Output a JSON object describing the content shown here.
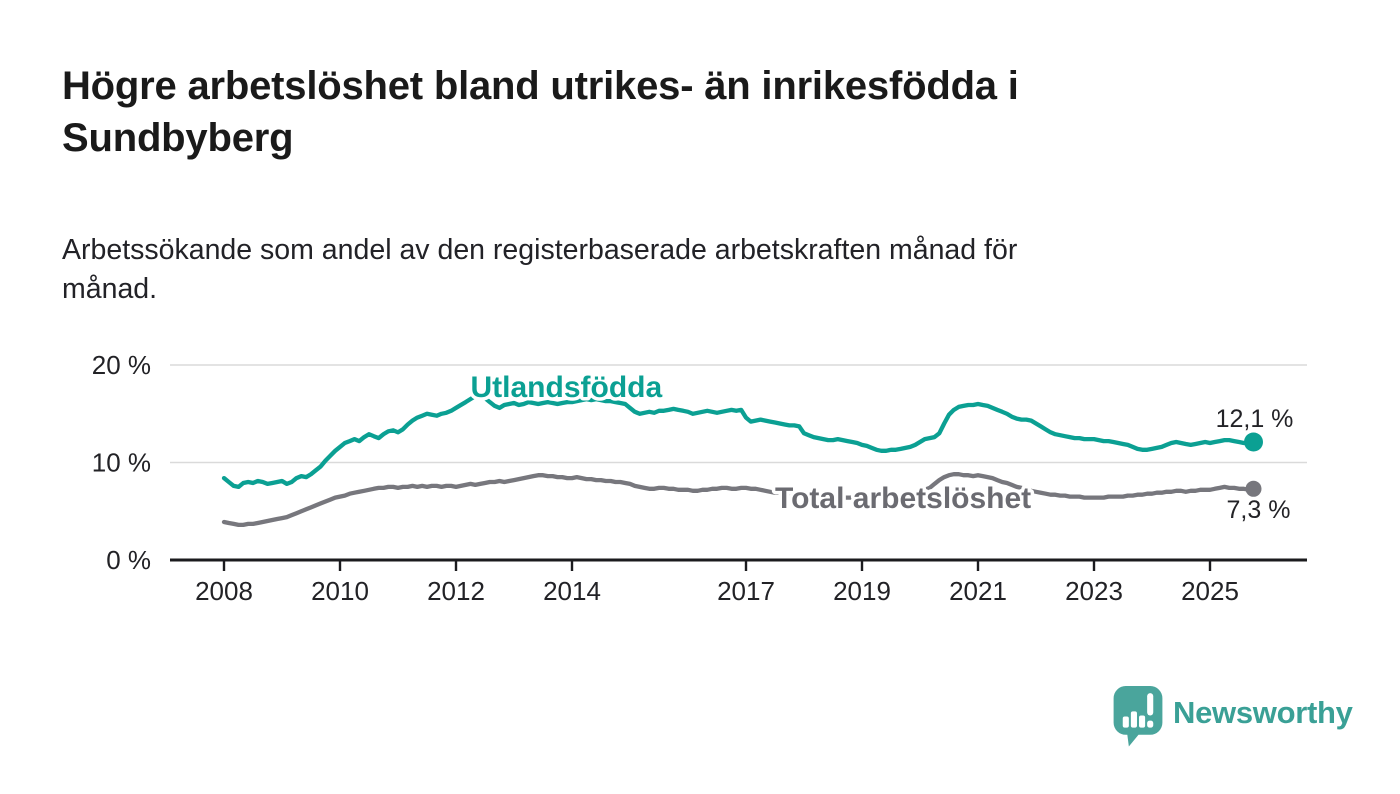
{
  "header": {
    "title_lines": [
      "Högre arbetslöshet bland utrikes- än inrikesfödda i",
      "Sundbyberg"
    ],
    "subtitle_lines": [
      "Arbetssökande som andel av den registerbaserade arbetskraften månad för",
      "månad."
    ]
  },
  "colors": {
    "accent_teal": "#0ba093",
    "series_gray": "#77777d",
    "grid": "#dadada",
    "axis": "#1b1b1e",
    "text_dark": "#1a1a1a",
    "logo_teal": "#4aa59c"
  },
  "chart_data": {
    "type": "line",
    "title": "Högre arbetslöshet bland utrikes- än inrikesfödda i Sundbyberg",
    "subtitle": "Arbetssökande som andel av den registerbaserade arbetskraften månad för månad.",
    "x_unit": "monthly",
    "x_start_year": 2008,
    "x_start_month": 1,
    "x_end_year": 2025,
    "x_end_month": 10,
    "x_ticks": [
      2008,
      2010,
      2012,
      2014,
      2017,
      2019,
      2021,
      2023,
      2025
    ],
    "y_ticks": [
      {
        "value": 0,
        "label": "0 %"
      },
      {
        "value": 10,
        "label": "10 %"
      },
      {
        "value": 20,
        "label": "20 %"
      }
    ],
    "ylim": [
      0,
      21.5
    ],
    "grid": "horizontal",
    "legend_position": "inline-labels",
    "series": [
      {
        "name": "Utlandsfödda",
        "color": "#0ba093",
        "label_color": "#0ba093",
        "end_label": "12,1 %",
        "end_value": 12.1,
        "dot_radius": 9.5,
        "label_anchor": {
          "year": 2012.25,
          "pct": 16.7
        },
        "end_label_offset": {
          "dx": 1,
          "dy": -15
        },
        "values": [
          8.4,
          8.0,
          7.6,
          7.5,
          7.9,
          8.0,
          7.9,
          8.1,
          8.0,
          7.8,
          7.9,
          8.0,
          8.1,
          7.8,
          8.0,
          8.4,
          8.6,
          8.5,
          8.8,
          9.2,
          9.6,
          10.2,
          10.7,
          11.2,
          11.6,
          12.0,
          12.2,
          12.4,
          12.2,
          12.6,
          12.9,
          12.7,
          12.5,
          12.9,
          13.2,
          13.3,
          13.1,
          13.4,
          13.9,
          14.3,
          14.6,
          14.8,
          15.0,
          14.9,
          14.8,
          15.0,
          15.1,
          15.3,
          15.6,
          15.9,
          16.2,
          16.5,
          16.8,
          16.8,
          16.6,
          16.2,
          15.8,
          15.6,
          15.9,
          16.0,
          16.1,
          15.9,
          16.0,
          16.2,
          16.1,
          16.0,
          16.1,
          16.2,
          16.1,
          16.0,
          16.1,
          16.2,
          16.2,
          16.3,
          16.4,
          16.5,
          16.4,
          16.5,
          16.4,
          16.3,
          16.3,
          16.2,
          16.1,
          16.0,
          15.6,
          15.2,
          15.0,
          15.1,
          15.2,
          15.1,
          15.3,
          15.3,
          15.4,
          15.5,
          15.4,
          15.3,
          15.2,
          15.0,
          15.1,
          15.2,
          15.3,
          15.2,
          15.1,
          15.2,
          15.3,
          15.4,
          15.3,
          15.4,
          14.6,
          14.2,
          14.3,
          14.4,
          14.3,
          14.2,
          14.1,
          14.0,
          13.9,
          13.8,
          13.8,
          13.7,
          13.0,
          12.8,
          12.6,
          12.5,
          12.4,
          12.3,
          12.3,
          12.4,
          12.3,
          12.2,
          12.1,
          12.0,
          11.8,
          11.7,
          11.5,
          11.3,
          11.2,
          11.2,
          11.3,
          11.3,
          11.4,
          11.5,
          11.6,
          11.8,
          12.1,
          12.4,
          12.5,
          12.6,
          13.0,
          14.0,
          14.9,
          15.4,
          15.7,
          15.8,
          15.9,
          15.9,
          16.0,
          15.9,
          15.8,
          15.6,
          15.4,
          15.2,
          15.0,
          14.7,
          14.5,
          14.4,
          14.4,
          14.3,
          14.0,
          13.7,
          13.4,
          13.1,
          12.9,
          12.8,
          12.7,
          12.6,
          12.5,
          12.5,
          12.4,
          12.4,
          12.4,
          12.3,
          12.2,
          12.2,
          12.1,
          12.0,
          11.9,
          11.8,
          11.6,
          11.4,
          11.3,
          11.3,
          11.4,
          11.5,
          11.6,
          11.8,
          12.0,
          12.1,
          12.0,
          11.9,
          11.8,
          11.9,
          12.0,
          12.1,
          12.0,
          12.1,
          12.2,
          12.3,
          12.3,
          12.2,
          12.1,
          12.0,
          12.0,
          12.1
        ]
      },
      {
        "name": "Total arbetslöshet",
        "color": "#77777d",
        "label_color": "#6b6b71",
        "end_label": "7,3 %",
        "end_value": 7.3,
        "dot_radius": 8,
        "label_anchor": {
          "year": 2017.5,
          "pct": 5.33
        },
        "end_label_offset": {
          "dx": 5,
          "dy": 29
        },
        "values": [
          3.9,
          3.8,
          3.7,
          3.6,
          3.6,
          3.7,
          3.7,
          3.8,
          3.9,
          4.0,
          4.1,
          4.2,
          4.3,
          4.4,
          4.6,
          4.8,
          5.0,
          5.2,
          5.4,
          5.6,
          5.8,
          6.0,
          6.2,
          6.4,
          6.5,
          6.6,
          6.8,
          6.9,
          7.0,
          7.1,
          7.2,
          7.3,
          7.4,
          7.4,
          7.5,
          7.5,
          7.4,
          7.5,
          7.5,
          7.6,
          7.5,
          7.6,
          7.5,
          7.6,
          7.6,
          7.5,
          7.6,
          7.6,
          7.5,
          7.6,
          7.7,
          7.8,
          7.7,
          7.8,
          7.9,
          8.0,
          8.0,
          8.1,
          8.0,
          8.1,
          8.2,
          8.3,
          8.4,
          8.5,
          8.6,
          8.7,
          8.7,
          8.6,
          8.6,
          8.5,
          8.5,
          8.4,
          8.4,
          8.5,
          8.4,
          8.3,
          8.3,
          8.2,
          8.2,
          8.1,
          8.1,
          8.0,
          8.0,
          7.9,
          7.8,
          7.6,
          7.5,
          7.4,
          7.3,
          7.3,
          7.4,
          7.4,
          7.3,
          7.3,
          7.2,
          7.2,
          7.2,
          7.1,
          7.1,
          7.2,
          7.2,
          7.3,
          7.3,
          7.4,
          7.4,
          7.3,
          7.3,
          7.4,
          7.4,
          7.3,
          7.3,
          7.2,
          7.1,
          7.0,
          6.9,
          6.9,
          6.8,
          6.7,
          6.7,
          6.6,
          6.6,
          6.5,
          6.5,
          6.4,
          6.4,
          6.3,
          6.3,
          6.4,
          6.4,
          6.4,
          6.4,
          6.5,
          6.5,
          6.4,
          6.4,
          6.5,
          6.5,
          6.6,
          6.6,
          6.7,
          6.7,
          6.8,
          6.8,
          6.9,
          7.0,
          7.2,
          7.4,
          7.8,
          8.2,
          8.5,
          8.7,
          8.8,
          8.8,
          8.7,
          8.7,
          8.6,
          8.7,
          8.6,
          8.5,
          8.4,
          8.2,
          8.0,
          7.9,
          7.7,
          7.5,
          7.4,
          7.2,
          7.1,
          7.0,
          6.9,
          6.8,
          6.7,
          6.7,
          6.6,
          6.6,
          6.5,
          6.5,
          6.5,
          6.4,
          6.4,
          6.4,
          6.4,
          6.4,
          6.5,
          6.5,
          6.5,
          6.5,
          6.6,
          6.6,
          6.7,
          6.7,
          6.8,
          6.8,
          6.9,
          6.9,
          7.0,
          7.0,
          7.1,
          7.1,
          7.0,
          7.1,
          7.1,
          7.2,
          7.2,
          7.2,
          7.3,
          7.4,
          7.5,
          7.4,
          7.4,
          7.3,
          7.3,
          7.2,
          7.3
        ]
      }
    ]
  },
  "footer": {
    "brand": "Newsworthy"
  }
}
